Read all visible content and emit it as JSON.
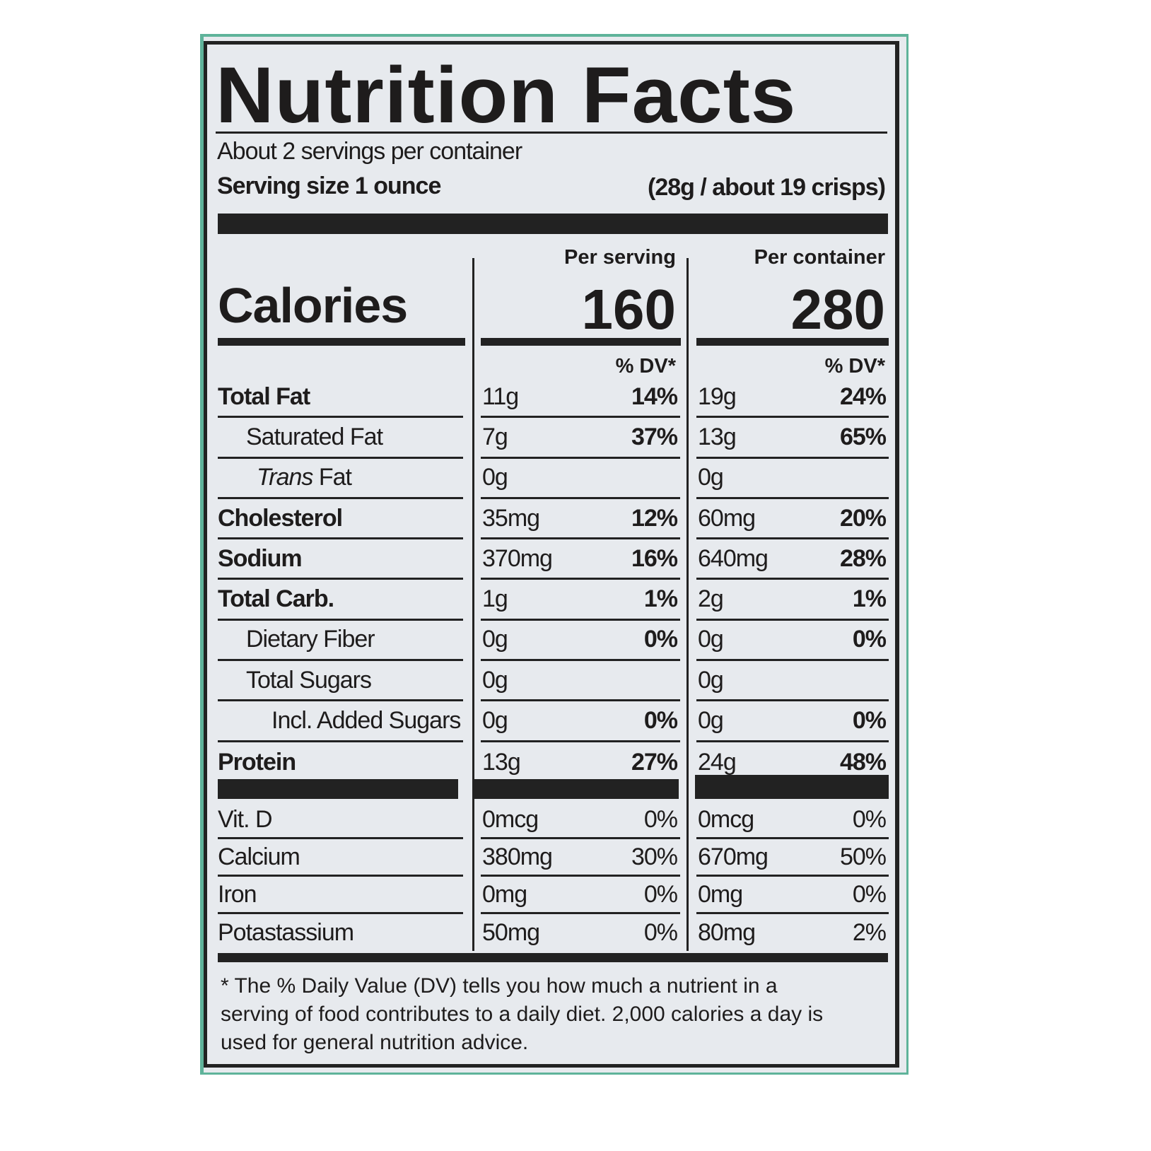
{
  "title": "Nutrition Facts",
  "servings_per_container": "About 2 servings per container",
  "serving_size_label": "Serving size 1 ounce",
  "serving_size_value": "(28g / about 19 crisps)",
  "columns": {
    "per_serving": "Per serving",
    "per_container": "Per container"
  },
  "calories": {
    "label": "Calories",
    "per_serving": "160",
    "per_container": "280"
  },
  "dv_header": "% DV*",
  "nutrients": [
    {
      "label": "Total Fat",
      "style": "bold",
      "serving_amt": "11g",
      "serving_dv": "14%",
      "container_amt": "19g",
      "container_dv": "24%"
    },
    {
      "label": "Saturated Fat",
      "style": "indent",
      "serving_amt": "7g",
      "serving_dv": "37%",
      "container_amt": "13g",
      "container_dv": "65%"
    },
    {
      "label": "Trans Fat",
      "style": "indent-italic",
      "serving_amt": "0g",
      "serving_dv": "",
      "container_amt": "0g",
      "container_dv": ""
    },
    {
      "label": "Cholesterol",
      "style": "bold",
      "serving_amt": "35mg",
      "serving_dv": "12%",
      "container_amt": "60mg",
      "container_dv": "20%"
    },
    {
      "label": "Sodium",
      "style": "bold",
      "serving_amt": "370mg",
      "serving_dv": "16%",
      "container_amt": "640mg",
      "container_dv": "28%"
    },
    {
      "label": "Total Carb.",
      "style": "bold",
      "serving_amt": "1g",
      "serving_dv": "1%",
      "container_amt": "2g",
      "container_dv": "1%"
    },
    {
      "label": "Dietary Fiber",
      "style": "indent",
      "serving_amt": "0g",
      "serving_dv": "0%",
      "container_amt": "0g",
      "container_dv": "0%"
    },
    {
      "label": "Total Sugars",
      "style": "indent",
      "serving_amt": "0g",
      "serving_dv": "",
      "container_amt": "0g",
      "container_dv": ""
    },
    {
      "label": "Incl. Added Sugars",
      "style": "indent2",
      "serving_amt": "0g",
      "serving_dv": "0%",
      "container_amt": "0g",
      "container_dv": "0%"
    },
    {
      "label": "Protein",
      "style": "bold",
      "serving_amt": "13g",
      "serving_dv": "27%",
      "container_amt": "24g",
      "container_dv": "48%"
    }
  ],
  "vitamins": [
    {
      "label": "Vit. D",
      "serving_amt": "0mcg",
      "serving_dv": "0%",
      "container_amt": "0mcg",
      "container_dv": "0%"
    },
    {
      "label": "Calcium",
      "serving_amt": "380mg",
      "serving_dv": "30%",
      "container_amt": "670mg",
      "container_dv": "50%"
    },
    {
      "label": "Iron",
      "serving_amt": "0mg",
      "serving_dv": "0%",
      "container_amt": "0mg",
      "container_dv": "0%"
    },
    {
      "label": "Potastassium",
      "serving_amt": "50mg",
      "serving_dv": "0%",
      "container_amt": "80mg",
      "container_dv": "2%"
    }
  ],
  "footnote": "* The % Daily Value (DV) tells you how much a nutrient in a serving of food contributes to a daily diet. 2,000 calories a day is used for general nutrition advice.",
  "colors": {
    "border_accent": "#5fb39a",
    "label_bg": "#e7eaee",
    "ink": "#1e1c1c"
  }
}
